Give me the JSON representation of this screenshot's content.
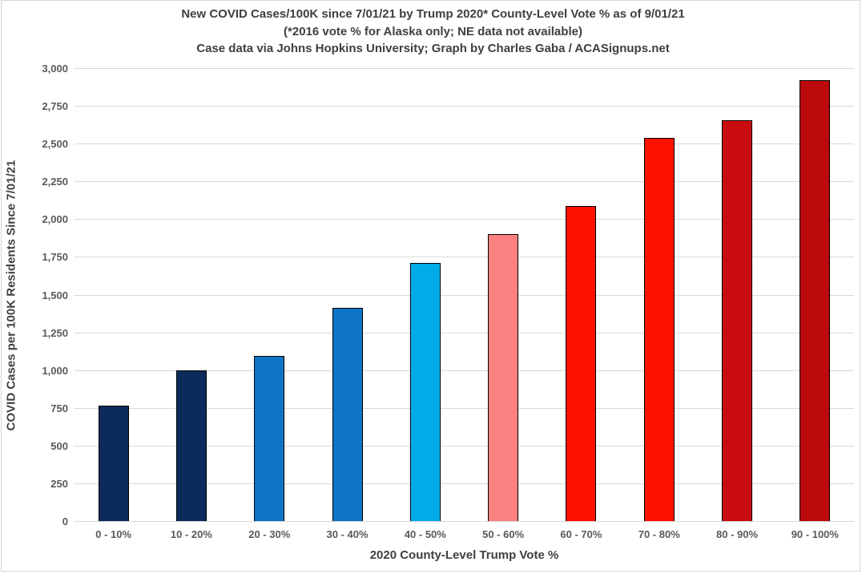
{
  "chart_data": {
    "type": "bar",
    "title_lines": [
      "New COVID Cases/100K since 7/01/21 by Trump 2020* County-Level Vote % as of 9/01/21",
      "(*2016 vote % for Alaska only; NE data not available)",
      "Case data via Johns Hopkins University; Graph by Charles Gaba / ACASignups.net"
    ],
    "xlabel": "2020 County-Level Trump Vote %",
    "ylabel": "COVID Cases per 100K Residents Since 7/01/21",
    "categories": [
      "0 - 10%",
      "10 - 20%",
      "20 - 30%",
      "30 - 40%",
      "40 - 50%",
      "50 - 60%",
      "60 - 70%",
      "70 - 80%",
      "80 - 90%",
      "90 - 100%"
    ],
    "values": [
      765,
      1000,
      1095,
      1410,
      1710,
      1900,
      2085,
      2540,
      2655,
      2920
    ],
    "bar_colors": [
      "#0d2a5c",
      "#0d2a5c",
      "#0d74c6",
      "#0d74c6",
      "#00ace8",
      "#fb8080",
      "#ff1100",
      "#ff1100",
      "#c90c0f",
      "#ba0a0c"
    ],
    "ylim": [
      0,
      3000
    ],
    "ytick_step": 250,
    "grid": "horizontal",
    "legend": "none"
  },
  "colors": {
    "gridline": "#d9d9d9",
    "title_text": "#3f3f3f",
    "tick_text": "#595959",
    "bar_border": "#000000",
    "frame_border": "#d6d6d6"
  }
}
